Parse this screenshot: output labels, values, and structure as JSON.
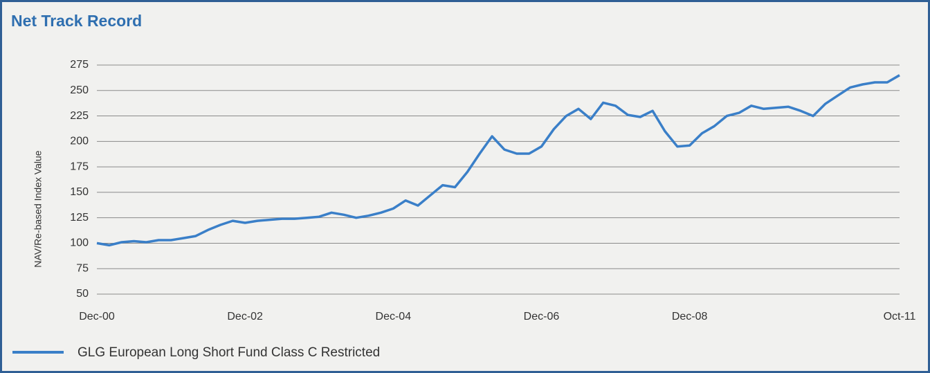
{
  "chart_data": {
    "type": "line",
    "title": "Net Track Record",
    "y_label": "NAV/Re-based Index Value",
    "categories": [
      "Dec-00",
      null,
      null,
      null,
      null,
      null,
      null,
      null,
      null,
      null,
      null,
      null,
      "Dec-02",
      null,
      null,
      null,
      null,
      null,
      null,
      null,
      null,
      null,
      null,
      null,
      "Dec-04",
      null,
      null,
      null,
      null,
      null,
      null,
      null,
      null,
      null,
      null,
      null,
      "Dec-06",
      null,
      null,
      null,
      null,
      null,
      null,
      null,
      null,
      null,
      null,
      null,
      "Dec-08",
      null,
      null,
      null,
      null,
      null,
      null,
      null,
      null,
      null,
      null,
      null,
      null,
      null,
      null,
      null,
      null,
      "Oct-11"
    ],
    "series": [
      {
        "name": "GLG European Long Short Fund Class C Restricted",
        "color": "#3a7fc8",
        "values": [
          100,
          98,
          101,
          102,
          101,
          103,
          103,
          105,
          107,
          113,
          118,
          122,
          120,
          122,
          123,
          124,
          124,
          125,
          126,
          130,
          128,
          125,
          127,
          130,
          134,
          142,
          137,
          147,
          157,
          155,
          170,
          188,
          205,
          192,
          188,
          188,
          195,
          212,
          225,
          232,
          222,
          238,
          235,
          226,
          224,
          230,
          210,
          195,
          196,
          208,
          215,
          225,
          228,
          235,
          232,
          233,
          234,
          230,
          225,
          237,
          245,
          253,
          256,
          258,
          258,
          265
        ]
      }
    ],
    "ylim": [
      50,
      275
    ],
    "yticks": [
      50,
      75,
      100,
      125,
      150,
      175,
      200,
      225,
      250,
      275
    ],
    "grid": true,
    "legend": "bottom-left"
  }
}
